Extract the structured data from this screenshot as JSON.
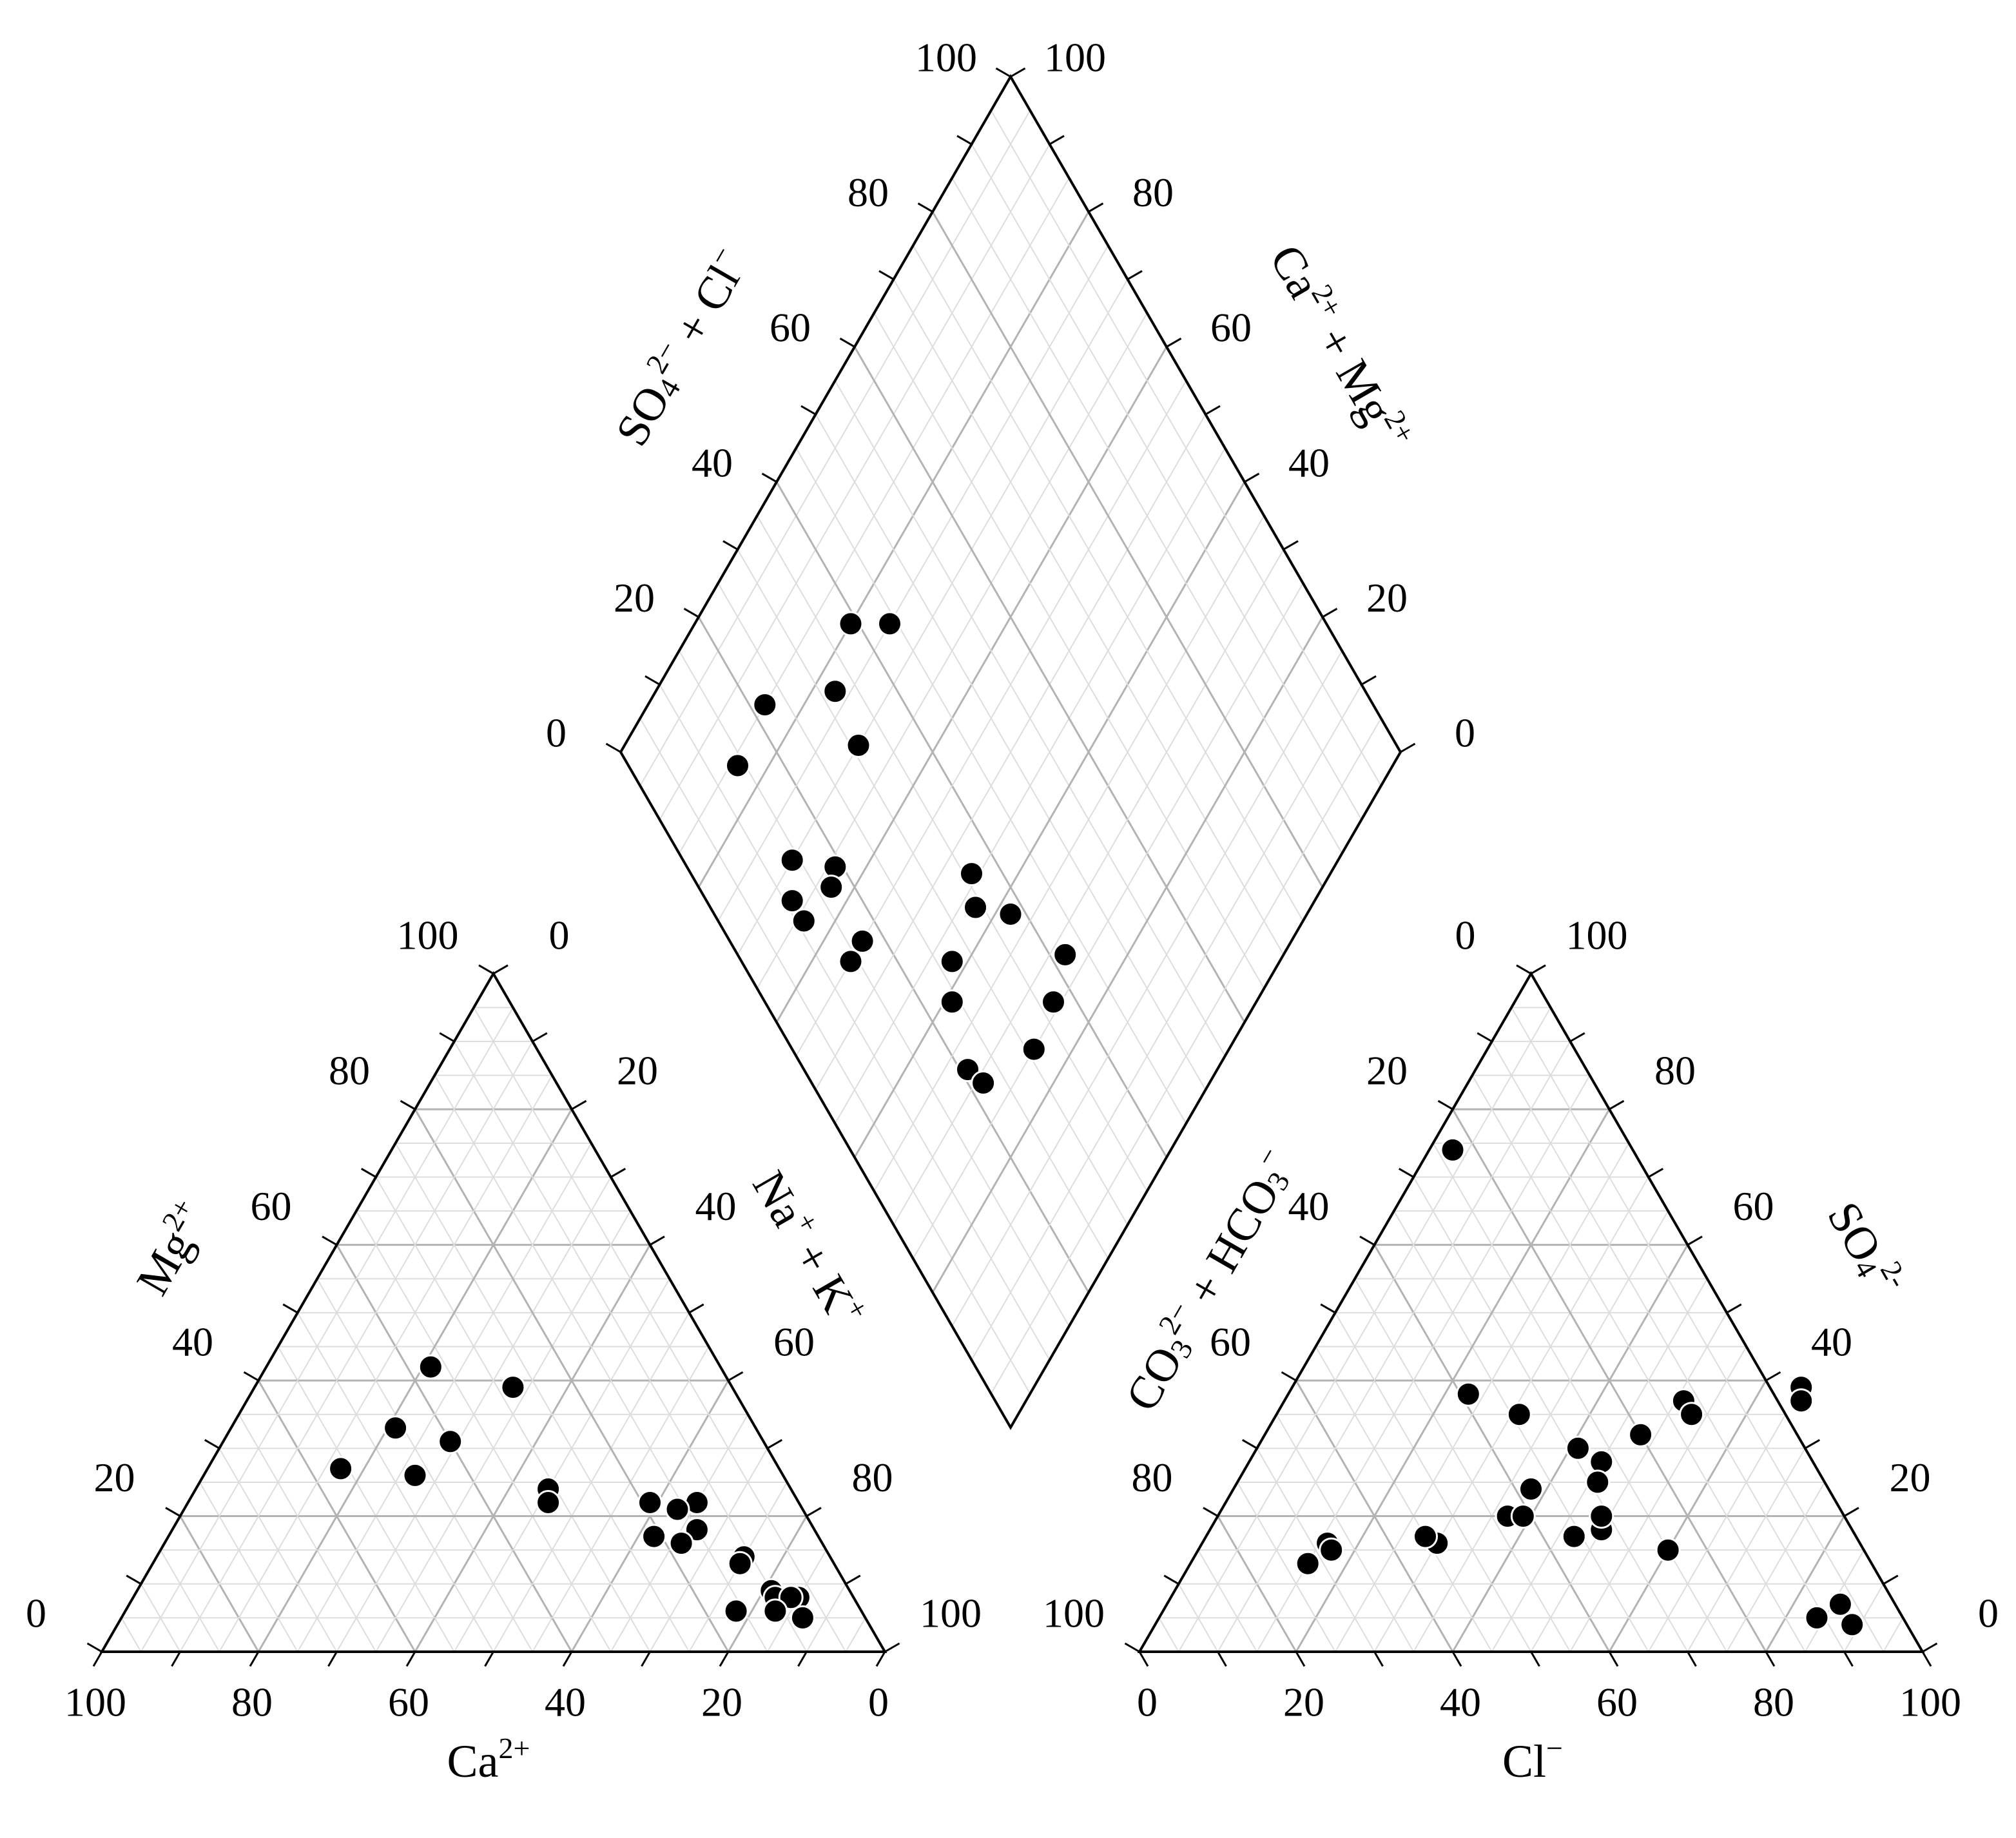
{
  "chart_data": {
    "type": "scatter",
    "plot": "Piper trilinear diagram",
    "grid": true,
    "colors": {
      "outline": "#000000",
      "grid_major": "#b3b3b3",
      "grid_minor": "#dddddd",
      "points": "#000000"
    },
    "tick_labels": [
      "0",
      "20",
      "40",
      "60",
      "80",
      "100"
    ],
    "cation_triangle": {
      "x_axis": {
        "base": "Ca",
        "sup": "2+",
        "reversed": true
      },
      "left_axis": {
        "base": "Mg",
        "sup": "2+"
      },
      "right_axis": {
        "parts": [
          {
            "t": "Na"
          },
          {
            "t": "+",
            "sup": true
          },
          {
            "t": " + K"
          },
          {
            "t": "+",
            "sup": true
          }
        ]
      },
      "points_ca_mg": [
        [
          37,
          42
        ],
        [
          28,
          39
        ],
        [
          46,
          33
        ],
        [
          40,
          31
        ],
        [
          56,
          27
        ],
        [
          47,
          26
        ],
        [
          31,
          24
        ],
        [
          32,
          22
        ],
        [
          13,
          22
        ],
        [
          19,
          22
        ],
        [
          16,
          21
        ],
        [
          15,
          18
        ],
        [
          18,
          16
        ],
        [
          21,
          17
        ],
        [
          11,
          14
        ],
        [
          12,
          13
        ],
        [
          10,
          9
        ],
        [
          10,
          8
        ],
        [
          7,
          8
        ],
        [
          8,
          8
        ],
        [
          16,
          6
        ],
        [
          11,
          6
        ],
        [
          8,
          5
        ]
      ]
    },
    "anion_triangle": {
      "x_axis": {
        "base": "Cl",
        "sup": "−"
      },
      "left_axis": {
        "parts": [
          {
            "t": "CO"
          },
          {
            "t": "3",
            "sub": true
          },
          {
            "t": "2−",
            "sup": true
          },
          {
            "t": " + HCO"
          },
          {
            "t": "3",
            "sub": true
          },
          {
            "t": "−",
            "sup": true
          }
        ]
      },
      "right_axis": {
        "parts": [
          {
            "t": "SO"
          },
          {
            "t": "4",
            "sub": true
          },
          {
            "t": "2-",
            "sup": true
          }
        ]
      },
      "points_cl_so4": [
        [
          3,
          74
        ],
        [
          23,
          38
        ],
        [
          31,
          35
        ],
        [
          51,
          37
        ],
        [
          53,
          35
        ],
        [
          65,
          39
        ],
        [
          66,
          37
        ],
        [
          48,
          32
        ],
        [
          41,
          30
        ],
        [
          45,
          28
        ],
        [
          46,
          25
        ],
        [
          38,
          24
        ],
        [
          37,
          20
        ],
        [
          39,
          20
        ],
        [
          47,
          17
        ],
        [
          50,
          18
        ],
        [
          49,
          20
        ],
        [
          60,
          15
        ],
        [
          30,
          16
        ],
        [
          28,
          17
        ],
        [
          16,
          16
        ],
        [
          17,
          15
        ],
        [
          15,
          13
        ],
        [
          86,
          7
        ],
        [
          84,
          5
        ],
        [
          89,
          4
        ]
      ]
    },
    "diamond": {
      "upper_left_axis": {
        "parts": [
          {
            "t": "SO"
          },
          {
            "t": "4",
            "sub": true
          },
          {
            "t": "2−",
            "sup": true
          },
          {
            "t": " + Cl"
          },
          {
            "t": "−",
            "sup": true
          }
        ]
      },
      "upper_right_axis": {
        "parts": [
          {
            "t": "Ca"
          },
          {
            "t": "2+",
            "sup": true
          },
          {
            "t": " + Mg"
          },
          {
            "t": "2+",
            "sup": true
          }
        ]
      },
      "points_so4cl_camg": [
        [
          44,
          75
        ],
        [
          39,
          80
        ],
        [
          32,
          77
        ],
        [
          19,
          64
        ],
        [
          17,
          63
        ],
        [
          42,
          28
        ],
        [
          38,
          38
        ],
        [
          34,
          43
        ],
        [
          36,
          46
        ],
        [
          21,
          32
        ],
        [
          22,
          29
        ],
        [
          31,
          25
        ],
        [
          37,
          26
        ],
        [
          27,
          42
        ],
        [
          24,
          39
        ],
        [
          14,
          70
        ],
        [
          17,
          55
        ],
        [
          14,
          55
        ],
        [
          31,
          70
        ],
        [
          11,
          67
        ],
        [
          11,
          64
        ],
        [
          14,
          84
        ],
        [
          22,
          85
        ]
      ]
    }
  }
}
